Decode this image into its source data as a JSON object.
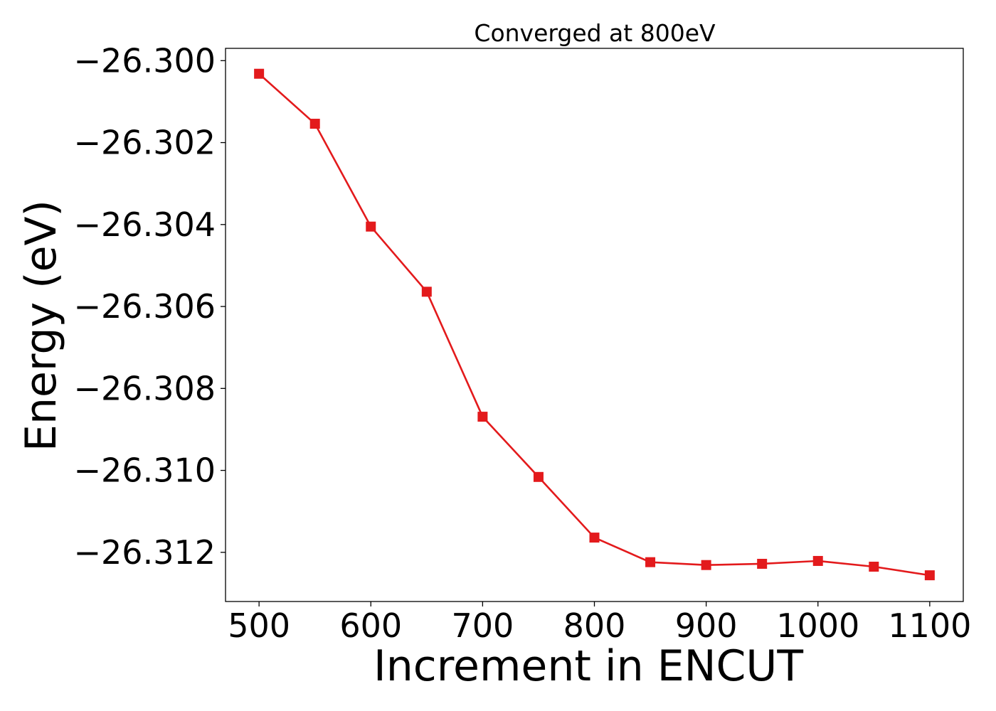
{
  "chart_data": {
    "type": "line",
    "title": "Converged at 800eV",
    "xlabel": "Increment in ENCUT",
    "ylabel": "Energy (eV)",
    "xlim": [
      470,
      1130
    ],
    "ylim": [
      -26.3132,
      -26.2997
    ],
    "x_ticks": [
      500,
      600,
      700,
      800,
      900,
      1000,
      1100
    ],
    "x_tick_labels": [
      "500",
      "600",
      "700",
      "800",
      "900",
      "1000",
      "1100"
    ],
    "y_ticks": [
      -26.3,
      -26.302,
      -26.304,
      -26.306,
      -26.308,
      -26.31,
      -26.312
    ],
    "y_tick_labels": [
      "−26.300",
      "−26.302",
      "−26.304",
      "−26.306",
      "−26.308",
      "−26.310",
      "−26.312"
    ],
    "grid": false,
    "colors": {
      "series": "#e31a1c"
    },
    "series": [
      {
        "marker": "square",
        "x": [
          500,
          550,
          600,
          650,
          700,
          750,
          800,
          850,
          900,
          950,
          1000,
          1050,
          1100
        ],
        "y": [
          -26.30032,
          -26.30154,
          -26.30405,
          -26.30564,
          -26.30869,
          -26.31016,
          -26.31164,
          -26.31224,
          -26.31231,
          -26.31228,
          -26.31221,
          -26.31235,
          -26.31256
        ]
      }
    ]
  }
}
